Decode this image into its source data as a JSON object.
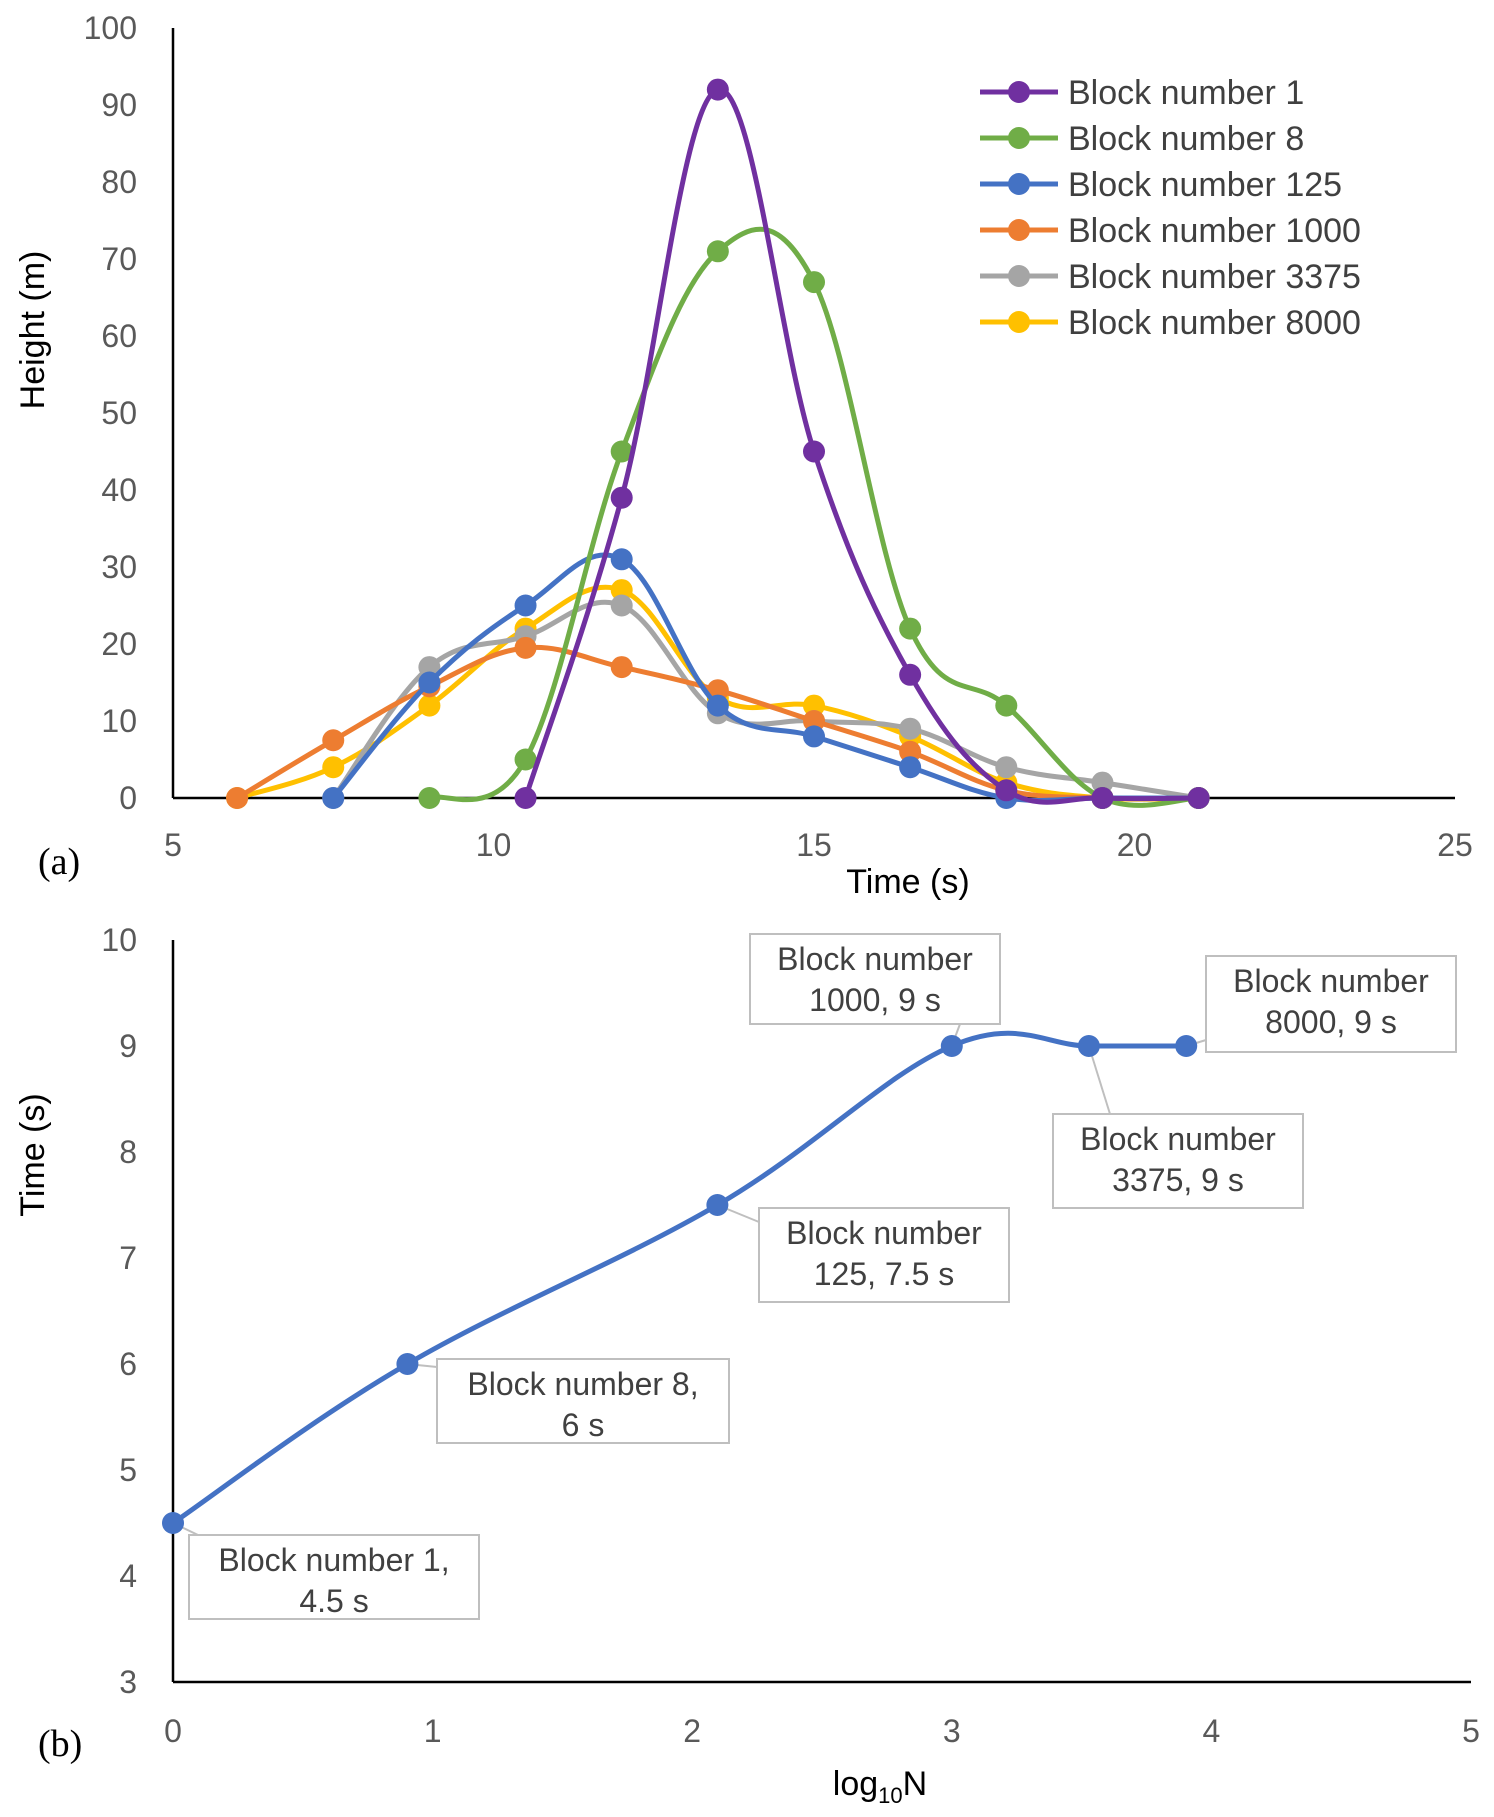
{
  "chart_data": [
    {
      "type": "line",
      "panel_label": "(a)",
      "xlabel": "Time (s)",
      "ylabel": "Height (m)",
      "xlim": [
        5,
        25
      ],
      "ylim": [
        0,
        100
      ],
      "x_ticks": [
        "5",
        "10",
        "15",
        "20",
        "25"
      ],
      "y_ticks": [
        "0",
        "10",
        "20",
        "30",
        "40",
        "50",
        "60",
        "70",
        "80",
        "90",
        "100"
      ],
      "legend_position": "top-right",
      "series": [
        {
          "name": "Block number 1",
          "color": "#7030A0",
          "points": [
            [
              10.5,
              0
            ],
            [
              12,
              39
            ],
            [
              13.5,
              92
            ],
            [
              15,
              45
            ],
            [
              16.5,
              16
            ],
            [
              18,
              1
            ],
            [
              19.5,
              0
            ],
            [
              21,
              0
            ]
          ]
        },
        {
          "name": "Block number 8",
          "color": "#70AD47",
          "points": [
            [
              9,
              0
            ],
            [
              10.5,
              5
            ],
            [
              12,
              45
            ],
            [
              13.5,
              71
            ],
            [
              15,
              67
            ],
            [
              16.5,
              22
            ],
            [
              18,
              12
            ],
            [
              19.5,
              0
            ],
            [
              21,
              0
            ]
          ]
        },
        {
          "name": "Block number 125",
          "color": "#4472C4",
          "points": [
            [
              7.5,
              0
            ],
            [
              9,
              15
            ],
            [
              10.5,
              25
            ],
            [
              12,
              31
            ],
            [
              13.5,
              12
            ],
            [
              15,
              8
            ],
            [
              16.5,
              4
            ],
            [
              18,
              0
            ],
            [
              19.5,
              0
            ],
            [
              21,
              0
            ]
          ]
        },
        {
          "name": "Block number 1000",
          "color": "#ED7D31",
          "points": [
            [
              6,
              0
            ],
            [
              7.5,
              7.5
            ],
            [
              9,
              14.5
            ],
            [
              10.5,
              19.5
            ],
            [
              12,
              17
            ],
            [
              13.5,
              14
            ],
            [
              15,
              10
            ],
            [
              16.5,
              6
            ],
            [
              18,
              1
            ],
            [
              19.5,
              0
            ],
            [
              21,
              0
            ]
          ]
        },
        {
          "name": "Block number 3375",
          "color": "#A5A5A5",
          "points": [
            [
              7.5,
              0
            ],
            [
              9,
              17
            ],
            [
              10.5,
              21
            ],
            [
              12,
              25
            ],
            [
              13.5,
              11
            ],
            [
              15,
              10
            ],
            [
              16.5,
              9
            ],
            [
              18,
              4
            ],
            [
              19.5,
              2
            ],
            [
              21,
              0
            ]
          ]
        },
        {
          "name": "Block number 8000",
          "color": "#FFC000",
          "points": [
            [
              6,
              0
            ],
            [
              7.5,
              4
            ],
            [
              9,
              12
            ],
            [
              10.5,
              22
            ],
            [
              12,
              27
            ],
            [
              13.5,
              13
            ],
            [
              15,
              12
            ],
            [
              16.5,
              8
            ],
            [
              18,
              2
            ],
            [
              19.5,
              0
            ],
            [
              21,
              0
            ]
          ]
        }
      ]
    },
    {
      "type": "line",
      "panel_label": "(b)",
      "xlabel_main": "log",
      "xlabel_sub": "10",
      "xlabel_tail": "N",
      "ylabel": "Time (s)",
      "xlim": [
        0,
        5
      ],
      "ylim": [
        3,
        10
      ],
      "x_ticks": [
        "0",
        "1",
        "2",
        "3",
        "4",
        "5"
      ],
      "y_ticks": [
        "3",
        "4",
        "5",
        "6",
        "7",
        "8",
        "9",
        "10"
      ],
      "series": [
        {
          "name": "Time",
          "color": "#4472C4",
          "points": [
            [
              0,
              4.5
            ],
            [
              0.903,
              6
            ],
            [
              2.097,
              7.5
            ],
            [
              3,
              9
            ],
            [
              3.528,
              9
            ],
            [
              3.903,
              9
            ]
          ]
        }
      ],
      "annotations": [
        {
          "line1": "Block number 1,",
          "line2": "4.5 s"
        },
        {
          "line1": "Block number 8,",
          "line2": "6 s"
        },
        {
          "line1": "Block number",
          "line2": "125, 7.5 s"
        },
        {
          "line1": "Block number",
          "line2": "1000, 9 s"
        },
        {
          "line1": "Block number",
          "line2": "3375, 9 s"
        },
        {
          "line1": "Block number",
          "line2": "8000, 9 s"
        }
      ]
    }
  ]
}
